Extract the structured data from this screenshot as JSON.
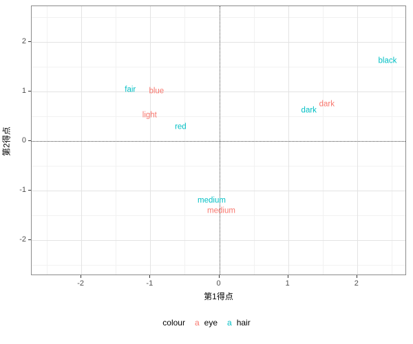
{
  "chart_data": {
    "type": "scatter",
    "title": "",
    "xlabel": "第1得点",
    "ylabel": "第2得点",
    "xlim": [
      -2.72,
      2.72
    ],
    "ylim": [
      -2.72,
      2.72
    ],
    "x_ticks": [
      -2,
      -1,
      0,
      1,
      2
    ],
    "y_ticks": [
      -2,
      -1,
      0,
      1,
      2
    ],
    "grid": true,
    "zero_lines": "dotted",
    "panel_border_color": "#8a8a8a",
    "grid_color": "#e3e3e3",
    "series": [
      {
        "name": "eye",
        "color": "#F8766D",
        "points": [
          {
            "label": "blue",
            "x": -0.91,
            "y": 1.0
          },
          {
            "label": "light",
            "x": -1.01,
            "y": 0.51
          },
          {
            "label": "dark",
            "x": 1.56,
            "y": 0.74
          },
          {
            "label": "medium",
            "x": 0.03,
            "y": -1.42
          }
        ]
      },
      {
        "name": "hair",
        "color": "#00BFC4",
        "points": [
          {
            "label": "fair",
            "x": -1.29,
            "y": 1.03
          },
          {
            "label": "red",
            "x": -0.56,
            "y": 0.28
          },
          {
            "label": "dark",
            "x": 1.3,
            "y": 0.61
          },
          {
            "label": "black",
            "x": 2.44,
            "y": 1.61
          },
          {
            "label": "medium",
            "x": -0.11,
            "y": -1.21
          }
        ]
      }
    ],
    "legend": {
      "title": "colour",
      "position": "bottom",
      "key_glyph": "a",
      "entries": [
        {
          "label": "eye",
          "color": "#F8766D"
        },
        {
          "label": "hair",
          "color": "#00BFC4"
        }
      ]
    }
  }
}
